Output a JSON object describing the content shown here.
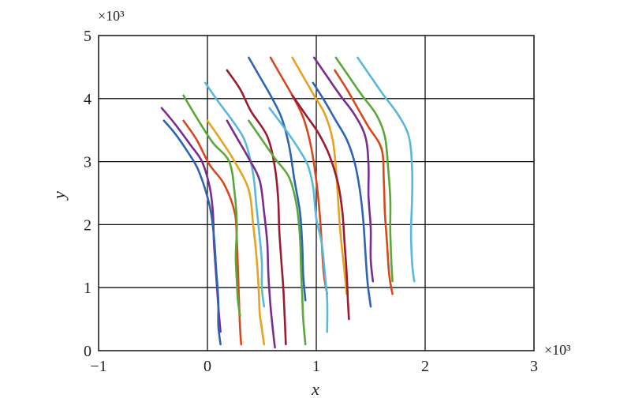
{
  "chart_data": {
    "type": "line",
    "xlabel": "x",
    "ylabel": "y",
    "xlim": [
      -1,
      3
    ],
    "ylim": [
      0,
      5
    ],
    "x_ticks": [
      "−1",
      "0",
      "1",
      "2",
      "3"
    ],
    "y_ticks": [
      "0",
      "1",
      "2",
      "3",
      "4",
      "5"
    ],
    "x_multiplier": "×10³",
    "y_multiplier": "×10³",
    "grid": true,
    "series": [
      {
        "color": "#7b2d8e",
        "points": [
          [
            -0.42,
            3.85
          ],
          [
            -0.3,
            3.6
          ],
          [
            -0.15,
            3.25
          ],
          [
            -0.05,
            3.0
          ],
          [
            0.02,
            2.6
          ],
          [
            0.05,
            2.2
          ],
          [
            0.06,
            1.7
          ],
          [
            0.08,
            1.2
          ],
          [
            0.1,
            0.7
          ],
          [
            0.12,
            0.3
          ]
        ]
      },
      {
        "color": "#2e64b4",
        "points": [
          [
            -0.4,
            3.65
          ],
          [
            -0.3,
            3.45
          ],
          [
            -0.18,
            3.15
          ],
          [
            -0.08,
            2.85
          ],
          [
            0.02,
            2.3
          ],
          [
            0.06,
            1.8
          ],
          [
            0.08,
            1.3
          ],
          [
            0.1,
            0.8
          ],
          [
            0.1,
            0.4
          ],
          [
            0.12,
            0.1
          ]
        ]
      },
      {
        "color": "#d9471f",
        "points": [
          [
            -0.22,
            3.65
          ],
          [
            -0.1,
            3.35
          ],
          [
            0.02,
            2.95
          ],
          [
            0.15,
            2.65
          ],
          [
            0.25,
            2.2
          ],
          [
            0.27,
            1.75
          ],
          [
            0.28,
            1.3
          ],
          [
            0.29,
            0.8
          ],
          [
            0.3,
            0.35
          ],
          [
            0.31,
            0.1
          ]
        ]
      },
      {
        "color": "#5aa83a",
        "points": [
          [
            -0.22,
            4.05
          ],
          [
            -0.1,
            3.7
          ],
          [
            0.05,
            3.3
          ],
          [
            0.2,
            3.0
          ],
          [
            0.25,
            2.5
          ],
          [
            0.27,
            2.0
          ],
          [
            0.26,
            1.5
          ],
          [
            0.27,
            1.1
          ],
          [
            0.28,
            0.8
          ],
          [
            0.3,
            0.55
          ]
        ]
      },
      {
        "color": "#5ab8dc",
        "points": [
          [
            -0.02,
            4.25
          ],
          [
            0.1,
            3.95
          ],
          [
            0.25,
            3.6
          ],
          [
            0.35,
            3.3
          ],
          [
            0.42,
            2.8
          ],
          [
            0.45,
            2.3
          ],
          [
            0.48,
            1.8
          ],
          [
            0.5,
            1.4
          ],
          [
            0.5,
            1.0
          ],
          [
            0.52,
            0.7
          ]
        ]
      },
      {
        "color": "#e8a21f",
        "points": [
          [
            0.0,
            3.65
          ],
          [
            0.12,
            3.35
          ],
          [
            0.25,
            3.0
          ],
          [
            0.38,
            2.55
          ],
          [
            0.42,
            2.0
          ],
          [
            0.45,
            1.5
          ],
          [
            0.47,
            1.0
          ],
          [
            0.48,
            0.6
          ],
          [
            0.5,
            0.35
          ],
          [
            0.52,
            0.1
          ]
        ]
      },
      {
        "color": "#9b1b30",
        "points": [
          [
            0.18,
            4.45
          ],
          [
            0.3,
            4.15
          ],
          [
            0.4,
            3.8
          ],
          [
            0.55,
            3.4
          ],
          [
            0.62,
            2.9
          ],
          [
            0.65,
            2.4
          ],
          [
            0.66,
            1.9
          ],
          [
            0.68,
            1.4
          ],
          [
            0.7,
            0.9
          ],
          [
            0.72,
            0.1
          ]
        ]
      },
      {
        "color": "#7b2d8e",
        "points": [
          [
            0.18,
            3.65
          ],
          [
            0.28,
            3.35
          ],
          [
            0.38,
            3.05
          ],
          [
            0.48,
            2.7
          ],
          [
            0.52,
            2.2
          ],
          [
            0.55,
            1.7
          ],
          [
            0.56,
            1.2
          ],
          [
            0.58,
            0.7
          ],
          [
            0.6,
            0.35
          ],
          [
            0.62,
            0.05
          ]
        ]
      },
      {
        "color": "#2e64b4",
        "points": [
          [
            0.38,
            4.65
          ],
          [
            0.48,
            4.35
          ],
          [
            0.58,
            4.05
          ],
          [
            0.68,
            3.7
          ],
          [
            0.75,
            3.25
          ],
          [
            0.8,
            2.7
          ],
          [
            0.85,
            2.2
          ],
          [
            0.87,
            1.7
          ],
          [
            0.88,
            1.2
          ],
          [
            0.9,
            0.8
          ]
        ]
      },
      {
        "color": "#5aa83a",
        "points": [
          [
            0.38,
            3.65
          ],
          [
            0.5,
            3.35
          ],
          [
            0.62,
            3.05
          ],
          [
            0.75,
            2.75
          ],
          [
            0.82,
            2.3
          ],
          [
            0.85,
            1.8
          ],
          [
            0.86,
            1.3
          ],
          [
            0.87,
            0.9
          ],
          [
            0.88,
            0.5
          ],
          [
            0.9,
            0.1
          ]
        ]
      },
      {
        "color": "#d9471f",
        "points": [
          [
            0.58,
            4.65
          ],
          [
            0.68,
            4.35
          ],
          [
            0.78,
            4.05
          ],
          [
            0.88,
            3.7
          ],
          [
            0.95,
            3.25
          ],
          [
            1.0,
            2.7
          ],
          [
            1.03,
            2.2
          ],
          [
            1.05,
            1.7
          ],
          [
            1.07,
            1.2
          ],
          [
            1.1,
            0.9
          ]
        ]
      },
      {
        "color": "#5ab8dc",
        "points": [
          [
            0.57,
            3.85
          ],
          [
            0.7,
            3.55
          ],
          [
            0.82,
            3.25
          ],
          [
            0.92,
            2.95
          ],
          [
            0.97,
            2.6
          ],
          [
            1.0,
            2.1
          ],
          [
            1.05,
            1.7
          ],
          [
            1.08,
            1.2
          ],
          [
            1.1,
            0.8
          ],
          [
            1.1,
            0.3
          ]
        ]
      },
      {
        "color": "#e8a21f",
        "points": [
          [
            0.78,
            4.65
          ],
          [
            0.88,
            4.35
          ],
          [
            0.98,
            4.05
          ],
          [
            1.08,
            3.75
          ],
          [
            1.15,
            3.35
          ],
          [
            1.18,
            2.9
          ],
          [
            1.2,
            2.4
          ],
          [
            1.22,
            1.9
          ],
          [
            1.25,
            1.4
          ],
          [
            1.28,
            0.9
          ]
        ]
      },
      {
        "color": "#9b1b30",
        "points": [
          [
            0.78,
            4.05
          ],
          [
            0.9,
            3.75
          ],
          [
            1.02,
            3.45
          ],
          [
            1.12,
            3.1
          ],
          [
            1.2,
            2.65
          ],
          [
            1.24,
            2.2
          ],
          [
            1.26,
            1.7
          ],
          [
            1.28,
            1.2
          ],
          [
            1.29,
            0.8
          ],
          [
            1.3,
            0.5
          ]
        ]
      },
      {
        "color": "#2e64b4",
        "points": [
          [
            0.97,
            4.25
          ],
          [
            1.08,
            3.95
          ],
          [
            1.18,
            3.65
          ],
          [
            1.28,
            3.35
          ],
          [
            1.35,
            3.0
          ],
          [
            1.4,
            2.55
          ],
          [
            1.43,
            2.1
          ],
          [
            1.45,
            1.6
          ],
          [
            1.47,
            1.1
          ],
          [
            1.5,
            0.7
          ]
        ]
      },
      {
        "color": "#7b2d8e",
        "points": [
          [
            0.98,
            4.65
          ],
          [
            1.1,
            4.35
          ],
          [
            1.22,
            4.05
          ],
          [
            1.35,
            3.75
          ],
          [
            1.45,
            3.4
          ],
          [
            1.48,
            2.95
          ],
          [
            1.48,
            2.45
          ],
          [
            1.5,
            1.95
          ],
          [
            1.5,
            1.45
          ],
          [
            1.52,
            1.1
          ]
        ]
      },
      {
        "color": "#d9471f",
        "points": [
          [
            1.17,
            4.45
          ],
          [
            1.28,
            4.15
          ],
          [
            1.38,
            3.85
          ],
          [
            1.48,
            3.55
          ],
          [
            1.6,
            3.2
          ],
          [
            1.62,
            2.7
          ],
          [
            1.63,
            2.2
          ],
          [
            1.65,
            1.7
          ],
          [
            1.67,
            1.2
          ],
          [
            1.7,
            0.9
          ]
        ]
      },
      {
        "color": "#5aa83a",
        "points": [
          [
            1.18,
            4.65
          ],
          [
            1.3,
            4.35
          ],
          [
            1.42,
            4.05
          ],
          [
            1.55,
            3.75
          ],
          [
            1.63,
            3.4
          ],
          [
            1.66,
            2.9
          ],
          [
            1.68,
            2.4
          ],
          [
            1.68,
            1.9
          ],
          [
            1.69,
            1.4
          ],
          [
            1.7,
            1.1
          ]
        ]
      },
      {
        "color": "#5ab8dc",
        "points": [
          [
            1.38,
            4.65
          ],
          [
            1.5,
            4.35
          ],
          [
            1.62,
            4.05
          ],
          [
            1.75,
            3.75
          ],
          [
            1.85,
            3.4
          ],
          [
            1.88,
            2.9
          ],
          [
            1.88,
            2.4
          ],
          [
            1.87,
            1.9
          ],
          [
            1.88,
            1.4
          ],
          [
            1.9,
            1.1
          ]
        ]
      }
    ]
  }
}
